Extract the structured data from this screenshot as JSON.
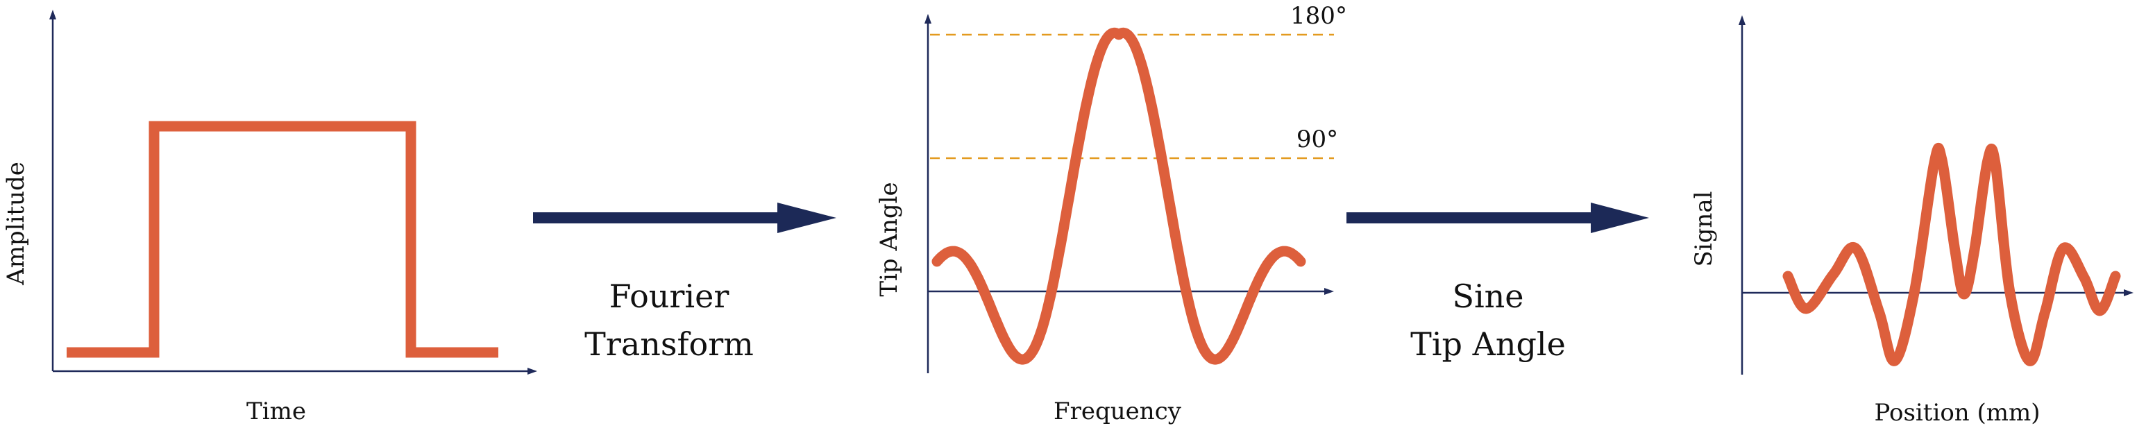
{
  "colors": {
    "axis": "#1f2a5a",
    "curve": "#dd5f3c",
    "arrow": "#1c2957",
    "reference_line": "#e39a1f",
    "text": "#111111"
  },
  "panels": {
    "time": {
      "ylabel": "Amplitude",
      "xlabel": "Time"
    },
    "frequency": {
      "ylabel": "Tip Angle",
      "xlabel": "Frequency",
      "reference_lines": [
        {
          "label": "180°",
          "level_fraction_of_peak": 1.0
        },
        {
          "label": "90°",
          "level_fraction_of_peak": 0.5
        }
      ]
    },
    "position": {
      "ylabel": "Signal",
      "xlabel": "Position (mm)"
    }
  },
  "arrows": [
    {
      "label_line1": "Fourier",
      "label_line2": "Transform"
    },
    {
      "label_line1": "Sine",
      "label_line2": "Tip Angle"
    }
  ]
}
